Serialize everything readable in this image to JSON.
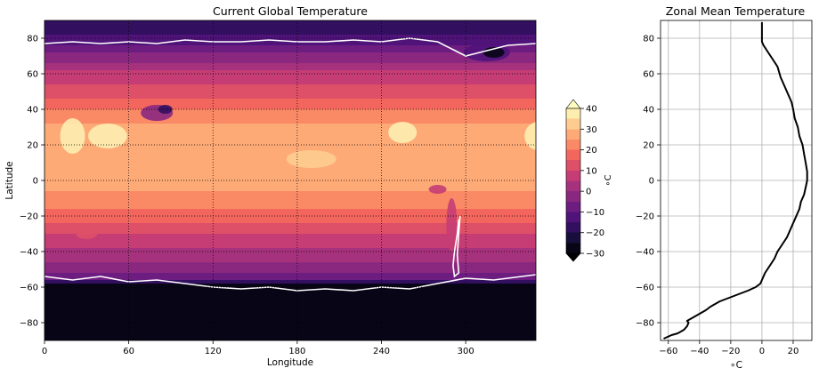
{
  "colors": {
    "ramp": [
      "#000004",
      "#180f3d",
      "#440f76",
      "#721f81",
      "#9e2f7f",
      "#cd4071",
      "#f1605d",
      "#fd9668",
      "#feca8d",
      "#fcfdbf"
    ],
    "contour": "#ffffff",
    "profile_line": "#000000",
    "grid": "#b0b0b0"
  },
  "chart_data": [
    {
      "type": "heatmap",
      "title": "Current Global Temperature",
      "xlabel": "Longitude",
      "ylabel": "Latitude",
      "xlim": [
        0,
        350
      ],
      "ylim": [
        -90,
        90
      ],
      "xticks": [
        0,
        60,
        120,
        180,
        240,
        300
      ],
      "yticks": [
        -80,
        -60,
        -40,
        -20,
        0,
        20,
        40,
        60,
        80
      ],
      "grid": true,
      "contour_level": 0,
      "zonal_field": {
        "lat": [
          -90,
          -80,
          -70,
          -60,
          -55,
          -50,
          -40,
          -30,
          -20,
          -10,
          0,
          10,
          20,
          30,
          40,
          50,
          60,
          70,
          80,
          90
        ],
        "temp": [
          -48,
          -46,
          -42,
          -30,
          -8,
          -2,
          4,
          10,
          18,
          24,
          26,
          27,
          28,
          27,
          20,
          12,
          6,
          -4,
          -14,
          -18
        ]
      },
      "colorbar": {
        "label": "∘C",
        "ticks": [
          -30,
          -20,
          -10,
          0,
          10,
          20,
          30,
          40
        ],
        "levels": [
          -30,
          -25,
          -20,
          -15,
          -10,
          -5,
          0,
          5,
          10,
          15,
          20,
          25,
          30,
          35,
          40
        ],
        "extend": "both"
      }
    },
    {
      "type": "line",
      "title": "Zonal Mean Temperature",
      "xlabel": "∘C",
      "ylabel": "",
      "xlim": [
        -65,
        32
      ],
      "ylim": [
        -90,
        90
      ],
      "xticks": [
        -60,
        -40,
        -20,
        0,
        20
      ],
      "yticks": [
        -80,
        -60,
        -40,
        -20,
        0,
        20,
        40,
        60,
        80
      ],
      "grid": true,
      "x": [
        -63,
        -58,
        -54,
        -50,
        -48,
        -47,
        -48,
        -44,
        -40,
        -36,
        -33,
        -27,
        -21,
        -15,
        -9,
        -4,
        -1,
        0,
        2,
        5,
        8,
        10,
        13,
        16,
        18,
        20,
        22,
        24,
        25,
        27,
        28,
        29,
        29,
        28,
        27,
        26,
        24,
        23,
        21,
        20,
        19,
        17,
        15,
        12,
        10,
        7,
        4,
        1,
        0,
        0,
        0,
        0
      ],
      "y": [
        -89,
        -87,
        -86,
        -84,
        -82,
        -80,
        -79,
        -77,
        -75,
        -73,
        -71,
        -68,
        -66,
        -64,
        -62,
        -60,
        -58,
        -56,
        -52,
        -48,
        -44,
        -40,
        -36,
        -32,
        -28,
        -24,
        -20,
        -16,
        -12,
        -8,
        -4,
        0,
        5,
        10,
        15,
        20,
        25,
        30,
        35,
        40,
        44,
        48,
        52,
        58,
        64,
        68,
        72,
        76,
        78,
        80,
        84,
        89
      ]
    }
  ]
}
